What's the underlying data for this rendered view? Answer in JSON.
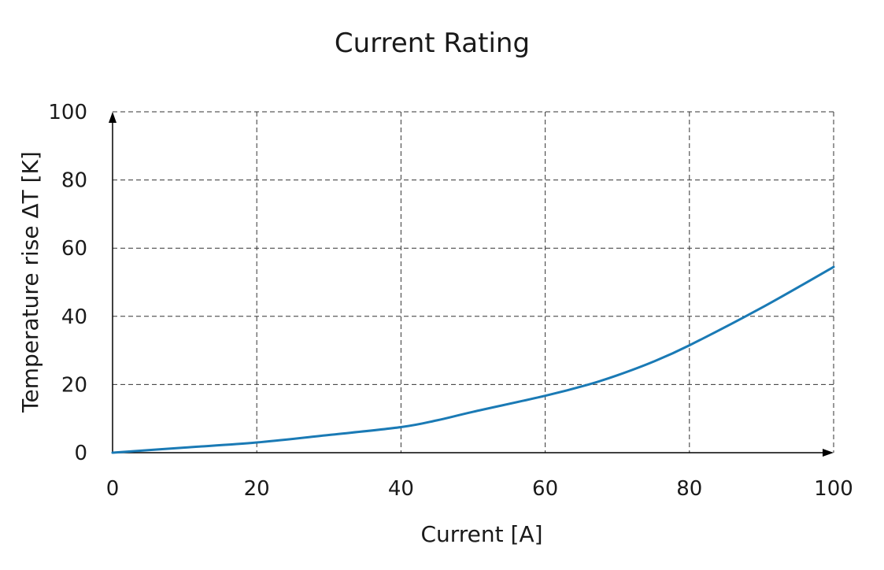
{
  "chart_data": {
    "type": "line",
    "title": "Current Rating",
    "xlabel": "Current [A]",
    "ylabel": "Temperature rise ΔT [K]",
    "xlim": [
      0,
      100
    ],
    "ylim": [
      0,
      100
    ],
    "x_ticks": [
      0,
      20,
      40,
      60,
      80,
      100
    ],
    "y_ticks": [
      0,
      20,
      40,
      60,
      80,
      100
    ],
    "grid": true,
    "series": [
      {
        "color": "#1a7ab5",
        "x": [
          0,
          10,
          20,
          30,
          40,
          45,
          50,
          60,
          66,
          70,
          75,
          80,
          90,
          100
        ],
        "y": [
          0,
          1.5,
          3,
          5.2,
          7.5,
          9.5,
          12,
          16.7,
          20,
          22.7,
          26.7,
          31.5,
          42.5,
          54.5
        ]
      }
    ]
  }
}
